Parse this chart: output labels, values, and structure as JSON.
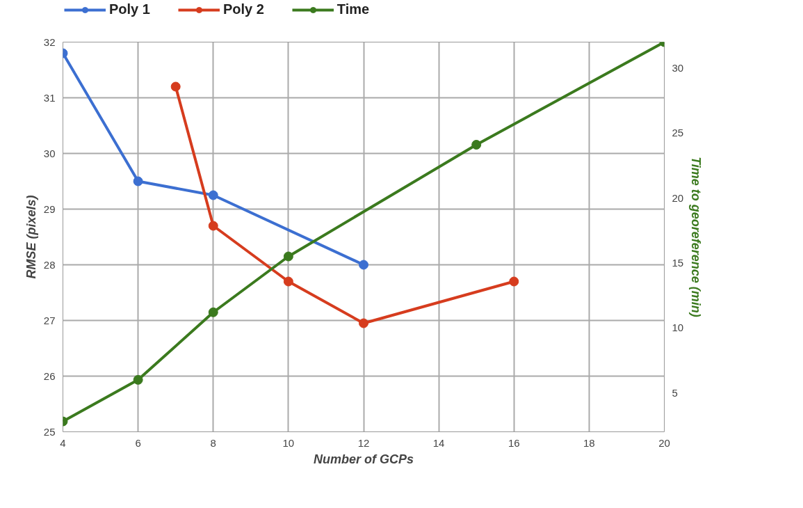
{
  "chart_data": {
    "type": "line",
    "xlabel": "Number of GCPs",
    "ylabel": "RMSE (pixels)",
    "y2label": "Time to georeference (min)",
    "xlim": [
      4,
      20
    ],
    "xticks": [
      4,
      6,
      8,
      10,
      12,
      14,
      16,
      18,
      20
    ],
    "ylim": [
      25,
      32
    ],
    "yticks": [
      25,
      26,
      27,
      28,
      29,
      30,
      31,
      32
    ],
    "y2lim": [
      2,
      32
    ],
    "y2ticks": [
      5,
      10,
      15,
      20,
      25,
      30
    ],
    "grid": true,
    "legend": "top",
    "marker": "circle",
    "line_style": "solid",
    "series": [
      {
        "name": "Poly 1",
        "color": "#3c6fd1",
        "x": [
          4,
          6,
          8,
          12
        ],
        "values": [
          31.8,
          29.5,
          29.25,
          28.0
        ]
      },
      {
        "name": "Poly 2",
        "color": "#d63c1e",
        "x": [
          7,
          8,
          10,
          12,
          16
        ],
        "values": [
          31.2,
          28.7,
          27.7,
          26.95,
          27.7
        ]
      },
      {
        "name": "Time",
        "color": "#3b7a1e",
        "axis": "y2",
        "x": [
          4,
          6,
          8,
          10,
          15,
          20
        ],
        "values": [
          2.8,
          6,
          11.2,
          15.5,
          24.1,
          32
        ]
      }
    ]
  }
}
